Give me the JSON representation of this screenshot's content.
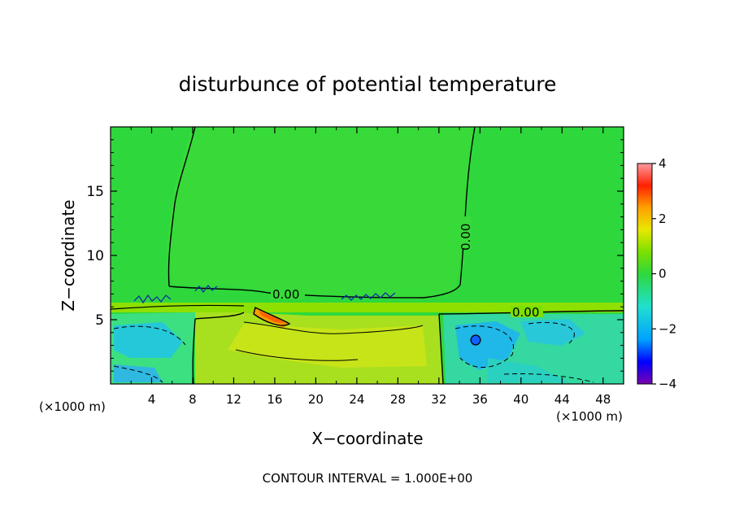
{
  "chart_data": {
    "type": "heatmap",
    "title": "disturbunce of potential temperature",
    "xlabel": "X−coordinate",
    "ylabel": "Z−coordinate",
    "x_unit_label": "(×1000 m)",
    "y_unit_label": "(×1000 m)",
    "xlim": [
      0,
      50
    ],
    "ylim": [
      0,
      20
    ],
    "x_ticks": [
      4,
      8,
      12,
      16,
      20,
      24,
      28,
      32,
      36,
      40,
      44,
      48
    ],
    "y_ticks": [
      5,
      10,
      15
    ],
    "colorbar": {
      "range": [
        -4,
        4
      ],
      "ticks": [
        4,
        2,
        0,
        -2,
        -4
      ],
      "colors": [
        "#7a00b0",
        "#0000ff",
        "#00a0ff",
        "#20e0d0",
        "#2ed83c",
        "#7ce000",
        "#e8e800",
        "#ffa000",
        "#ff2000",
        "#ff9aa0"
      ]
    },
    "contour_labels": [
      {
        "text": "0.00",
        "x": 38,
        "z": 11
      },
      {
        "text": "0.00",
        "x": 17,
        "z": 7
      },
      {
        "text": "0.00",
        "x": 41,
        "z": 5.6
      }
    ],
    "regions": [
      {
        "name": "upper-layer",
        "x": [
          0,
          50
        ],
        "z": [
          6,
          20
        ],
        "value": 0
      },
      {
        "name": "warm-core",
        "x": [
          8,
          32
        ],
        "z": [
          0,
          5.5
        ],
        "value": 0.8
      },
      {
        "name": "peak",
        "x": [
          14,
          18
        ],
        "z": [
          5,
          5.7
        ],
        "value": 3
      }
    ],
    "footer": "CONTOUR INTERVAL = 1.000E+00"
  }
}
